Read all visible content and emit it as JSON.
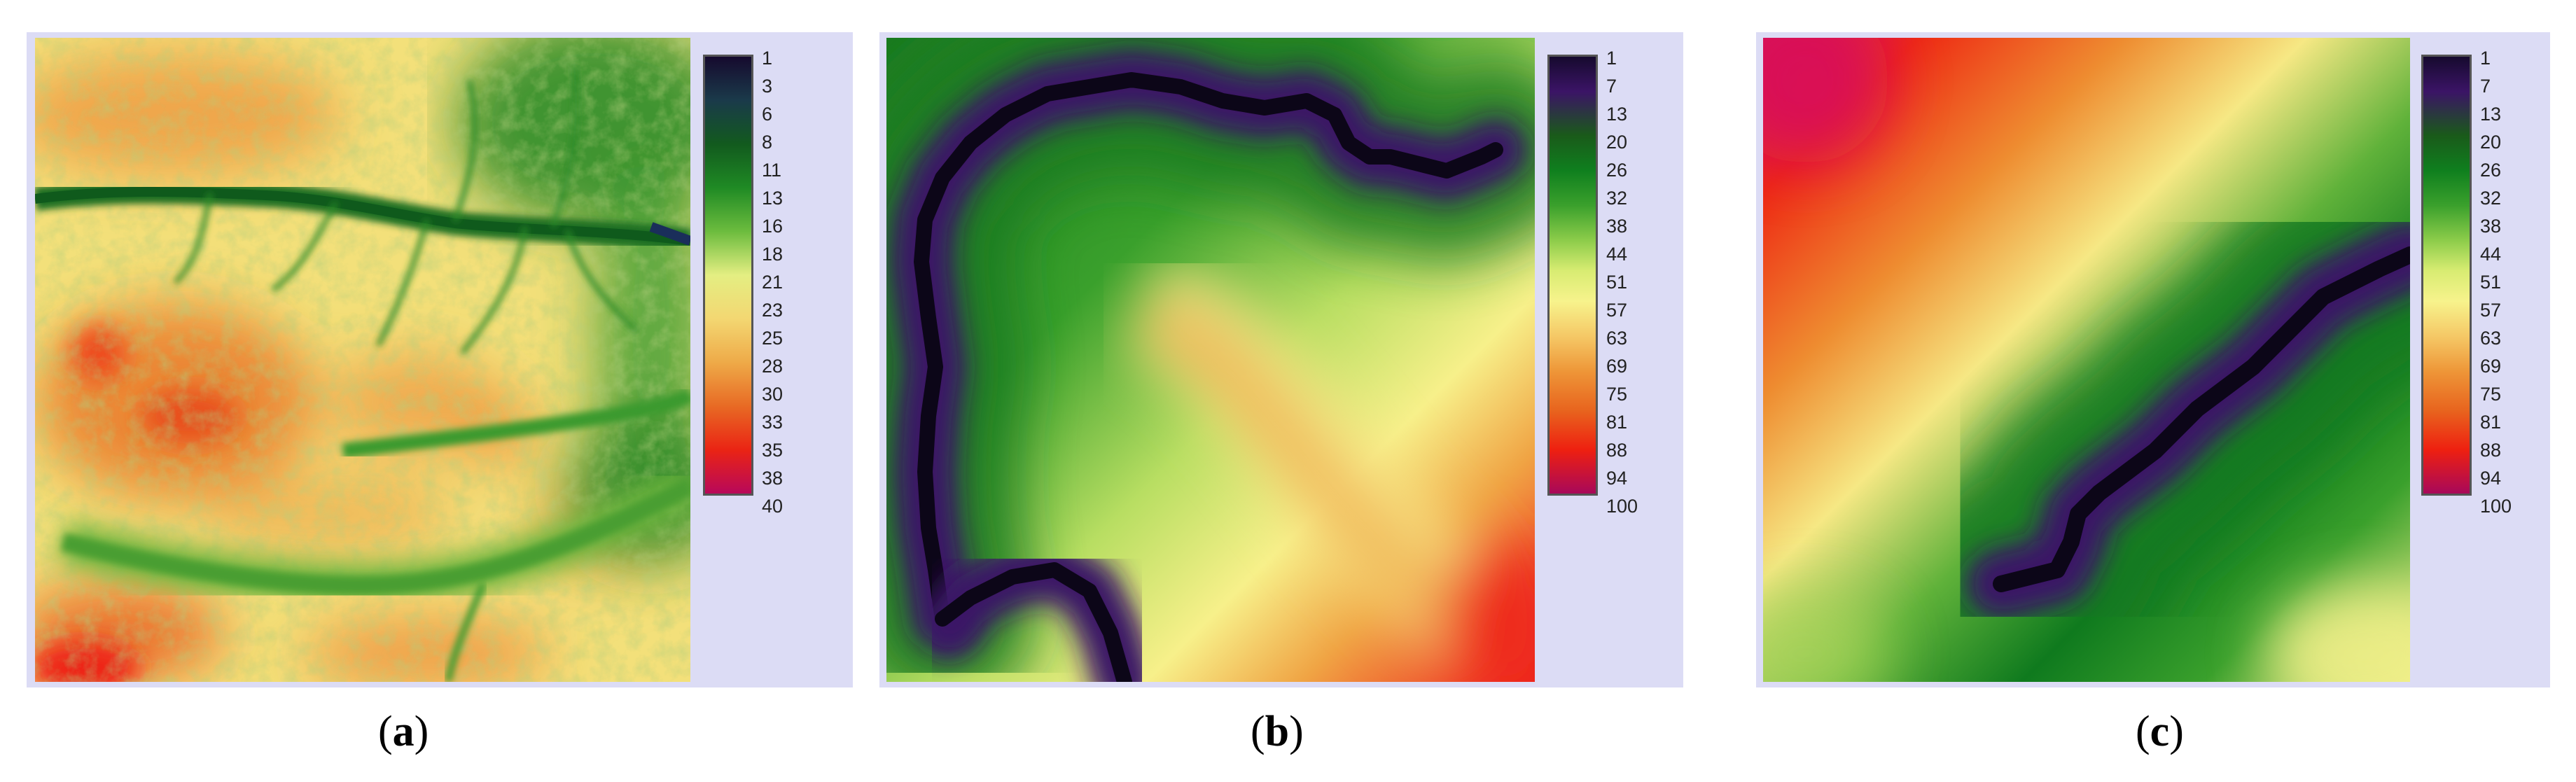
{
  "colors": {
    "panel_bg": "#dcdcf5",
    "ramp": [
      "#160a2e",
      "#3b1466",
      "#1a5a1a",
      "#0f7f1e",
      "#3aa02c",
      "#8ccc4a",
      "#d8ec72",
      "#f7f38c",
      "#f5c866",
      "#ee9638",
      "#e8641e",
      "#ee2010",
      "#a8085a"
    ]
  },
  "panels": [
    {
      "id": "a",
      "caption_open": "(",
      "caption_letter": "a",
      "caption_close": ")",
      "legend": [
        "1",
        "3",
        "6",
        "8",
        "11",
        "13",
        "16",
        "18",
        "21",
        "23",
        "25",
        "28",
        "30",
        "33",
        "35",
        "38",
        "40"
      ]
    },
    {
      "id": "b",
      "caption_open": "(",
      "caption_letter": "b",
      "caption_close": ")",
      "legend": [
        "1",
        "7",
        "13",
        "20",
        "26",
        "32",
        "38",
        "44",
        "51",
        "57",
        "63",
        "69",
        "75",
        "81",
        "88",
        "94",
        "100"
      ]
    },
    {
      "id": "c",
      "caption_open": "(",
      "caption_letter": "c",
      "caption_close": ")",
      "legend": [
        "1",
        "7",
        "13",
        "20",
        "26",
        "32",
        "38",
        "44",
        "51",
        "57",
        "63",
        "69",
        "75",
        "81",
        "88",
        "94",
        "100"
      ]
    }
  ]
}
